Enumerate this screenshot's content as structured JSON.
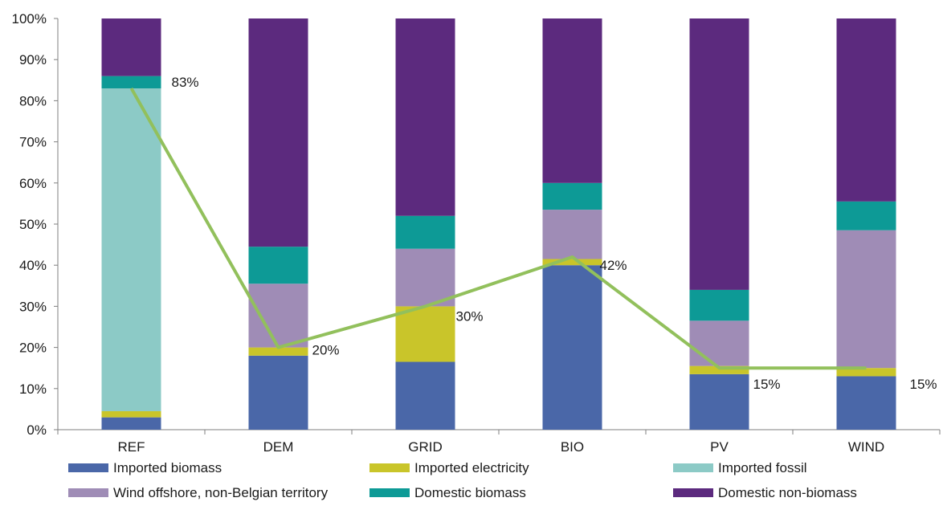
{
  "chart_data": {
    "type": "bar",
    "stacked": true,
    "categories": [
      "REF",
      "DEM",
      "GRID",
      "BIO",
      "PV",
      "WIND"
    ],
    "ylim": [
      0,
      100
    ],
    "yticks": [
      "0%",
      "10%",
      "20%",
      "30%",
      "40%",
      "50%",
      "60%",
      "70%",
      "80%",
      "90%",
      "100%"
    ],
    "grid": false,
    "legend_position": "bottom",
    "series": [
      {
        "name": "Imported biomass",
        "color": "#4a67a8",
        "values": [
          3,
          18,
          16.5,
          40,
          13.5,
          13
        ]
      },
      {
        "name": "Imported electricity",
        "color": "#c9c52a",
        "values": [
          1.5,
          2,
          13.5,
          1.5,
          2,
          2
        ]
      },
      {
        "name": "Imported fossil",
        "color": "#8ccac6",
        "values": [
          78.5,
          0,
          0,
          0,
          0,
          0
        ]
      },
      {
        "name": "Wind offshore, non-Belgian territory",
        "color": "#9f8cb6",
        "values": [
          0,
          15.5,
          14,
          12,
          11,
          33.5
        ]
      },
      {
        "name": "Domestic biomass",
        "color": "#0d9a96",
        "values": [
          3,
          9,
          8,
          6.5,
          7.5,
          7
        ]
      },
      {
        "name": "Domestic non-biomass",
        "color": "#5c2a7e",
        "values": [
          14,
          55.5,
          48,
          40,
          66,
          44.5
        ]
      }
    ],
    "overlay_line": {
      "color": "#92c05c",
      "values": [
        83,
        20,
        30,
        42,
        15,
        15
      ],
      "labels": [
        "83%",
        "20%",
        "30%",
        "42%",
        "15%",
        "15%"
      ]
    }
  }
}
